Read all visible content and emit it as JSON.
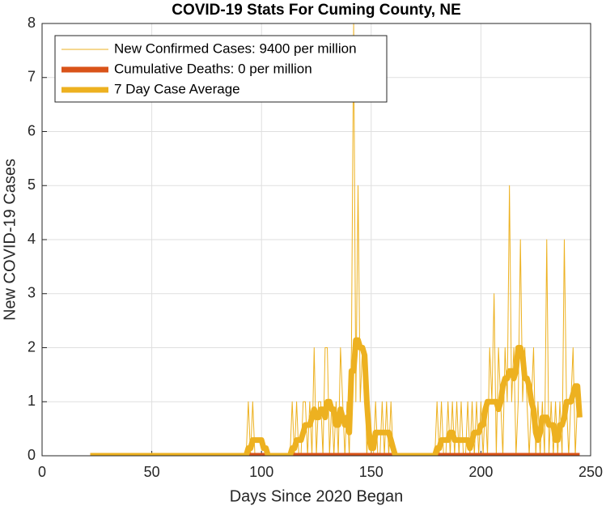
{
  "chart_data": {
    "type": "line",
    "title": "COVID-19 Stats For Cuming County, NE",
    "x_label": "Days Since 2020 Began",
    "y_label": "New COVID-19 Cases",
    "xlim": [
      0,
      250
    ],
    "xticks": [
      0,
      50,
      100,
      150,
      200,
      250
    ],
    "ylim": [
      0,
      8
    ],
    "yticks": [
      0,
      1,
      2,
      3,
      4,
      5,
      6,
      7,
      8
    ],
    "grid": true,
    "legend": "upper left",
    "series": [
      {
        "name": "New Confirmed Cases: 9400 per million",
        "color": "#edb120",
        "line_width": 1,
        "x": [
          22,
          23,
          24,
          25,
          26,
          27,
          28,
          29,
          30,
          31,
          32,
          33,
          34,
          35,
          36,
          37,
          38,
          39,
          40,
          41,
          42,
          43,
          44,
          45,
          46,
          47,
          48,
          49,
          50,
          51,
          52,
          53,
          54,
          55,
          56,
          57,
          58,
          59,
          60,
          61,
          62,
          63,
          64,
          65,
          66,
          67,
          68,
          69,
          70,
          71,
          72,
          73,
          74,
          75,
          76,
          77,
          78,
          79,
          80,
          81,
          82,
          83,
          84,
          85,
          86,
          87,
          88,
          89,
          90,
          91,
          92,
          93,
          94,
          95,
          96,
          97,
          98,
          99,
          100,
          101,
          102,
          103,
          104,
          105,
          106,
          107,
          108,
          109,
          110,
          111,
          112,
          113,
          114,
          115,
          116,
          117,
          118,
          119,
          120,
          121,
          122,
          123,
          124,
          125,
          126,
          127,
          128,
          129,
          130,
          131,
          132,
          133,
          134,
          135,
          136,
          137,
          138,
          139,
          140,
          141,
          142,
          143,
          144,
          145,
          146,
          147,
          148,
          149,
          150,
          151,
          152,
          153,
          154,
          155,
          156,
          157,
          158,
          159,
          160,
          161,
          162,
          163,
          164,
          165,
          166,
          167,
          168,
          169,
          170,
          171,
          172,
          173,
          174,
          175,
          176,
          177,
          178,
          179,
          180,
          181,
          182,
          183,
          184,
          185,
          186,
          187,
          188,
          189,
          190,
          191,
          192,
          193,
          194,
          195,
          196,
          197,
          198,
          199,
          200,
          201,
          202,
          203,
          204,
          205,
          206,
          207,
          208,
          209,
          210,
          211,
          212,
          213,
          214,
          215,
          216,
          217,
          218,
          219,
          220,
          221,
          222,
          223,
          224,
          225,
          226,
          227,
          228,
          229,
          230,
          231,
          232,
          233,
          234,
          235,
          236,
          237,
          238,
          239,
          240,
          241,
          242,
          243,
          244,
          245
        ],
        "values": [
          0,
          0,
          0,
          0,
          0,
          0,
          0,
          0,
          0,
          0,
          0,
          0,
          0,
          0,
          0,
          0,
          0,
          0,
          0,
          0,
          0,
          0,
          0,
          0,
          0,
          0,
          0,
          0,
          0,
          0,
          0,
          0,
          0,
          0,
          0,
          0,
          0,
          0,
          0,
          0,
          0,
          0,
          0,
          0,
          0,
          0,
          0,
          0,
          0,
          0,
          0,
          0,
          0,
          0,
          0,
          0,
          0,
          0,
          0,
          0,
          0,
          0,
          0,
          0,
          0,
          0,
          0,
          0,
          0,
          0,
          0,
          0,
          1,
          0,
          1,
          0,
          0,
          0,
          0,
          0,
          0,
          0,
          0,
          0,
          0,
          0,
          0,
          0,
          0,
          0,
          0,
          0,
          1,
          0,
          1,
          0,
          0,
          1,
          1,
          0,
          1,
          0,
          2,
          0,
          1,
          1,
          0,
          2,
          2,
          0,
          1,
          0,
          1,
          0,
          2,
          1,
          0,
          1,
          0,
          2,
          8,
          1,
          5,
          1,
          2,
          2,
          0,
          1,
          0,
          0,
          1,
          0,
          0,
          1,
          0,
          1,
          0,
          1,
          0,
          0,
          0,
          0,
          0,
          0,
          0,
          0,
          0,
          0,
          0,
          0,
          0,
          0,
          0,
          0,
          0,
          0,
          0,
          0,
          1,
          0,
          1,
          0,
          0,
          1,
          0,
          1,
          0,
          1,
          0,
          1,
          0,
          0,
          1,
          0,
          1,
          0,
          1,
          0,
          1,
          0,
          1,
          0,
          2,
          1,
          3,
          0,
          2,
          1,
          0,
          2,
          1,
          5,
          1,
          2,
          0,
          1,
          4,
          1,
          2,
          1,
          0,
          1,
          2,
          0,
          1,
          0,
          1,
          0,
          4,
          0,
          1,
          0,
          1,
          0,
          1,
          0,
          4,
          1,
          0,
          1,
          2,
          0,
          1,
          1
        ]
      },
      {
        "name": "Cumulative Deaths: 0 per million",
        "color": "#d95319",
        "line_width": 7,
        "x": [
          22,
          245
        ],
        "values": [
          0,
          0
        ]
      },
      {
        "name": "7 Day Case Average",
        "color": "#edb120",
        "line_width": 7,
        "x": [
          22,
          23,
          24,
          25,
          26,
          27,
          28,
          29,
          30,
          31,
          32,
          33,
          34,
          35,
          36,
          37,
          38,
          39,
          40,
          41,
          42,
          43,
          44,
          45,
          46,
          47,
          48,
          49,
          50,
          51,
          52,
          53,
          54,
          55,
          56,
          57,
          58,
          59,
          60,
          61,
          62,
          63,
          64,
          65,
          66,
          67,
          68,
          69,
          70,
          71,
          72,
          73,
          74,
          75,
          76,
          77,
          78,
          79,
          80,
          81,
          82,
          83,
          84,
          85,
          86,
          87,
          88,
          89,
          90,
          91,
          92,
          93,
          94,
          95,
          96,
          97,
          98,
          99,
          100,
          101,
          102,
          103,
          104,
          105,
          106,
          107,
          108,
          109,
          110,
          111,
          112,
          113,
          114,
          115,
          116,
          117,
          118,
          119,
          120,
          121,
          122,
          123,
          124,
          125,
          126,
          127,
          128,
          129,
          130,
          131,
          132,
          133,
          134,
          135,
          136,
          137,
          138,
          139,
          140,
          141,
          142,
          143,
          144,
          145,
          146,
          147,
          148,
          149,
          150,
          151,
          152,
          153,
          154,
          155,
          156,
          157,
          158,
          159,
          160,
          161,
          162,
          163,
          164,
          165,
          166,
          167,
          168,
          169,
          170,
          171,
          172,
          173,
          174,
          175,
          176,
          177,
          178,
          179,
          180,
          181,
          182,
          183,
          184,
          185,
          186,
          187,
          188,
          189,
          190,
          191,
          192,
          193,
          194,
          195,
          196,
          197,
          198,
          199,
          200,
          201,
          202,
          203,
          204,
          205,
          206,
          207,
          208,
          209,
          210,
          211,
          212,
          213,
          214,
          215,
          216,
          217,
          218,
          219,
          220,
          221,
          222,
          223,
          224,
          225,
          226,
          227,
          228,
          229,
          230,
          231,
          232,
          233,
          234,
          235,
          236,
          237,
          238,
          239,
          240,
          241,
          242,
          243,
          244,
          245
        ],
        "values": [
          0,
          0,
          0,
          0,
          0,
          0,
          0,
          0,
          0,
          0,
          0,
          0,
          0,
          0,
          0,
          0,
          0,
          0,
          0,
          0,
          0,
          0,
          0,
          0,
          0,
          0,
          0,
          0,
          0,
          0,
          0,
          0,
          0,
          0,
          0,
          0,
          0,
          0,
          0,
          0,
          0,
          0,
          0,
          0,
          0,
          0,
          0,
          0,
          0,
          0,
          0,
          0,
          0,
          0,
          0,
          0,
          0,
          0,
          0,
          0,
          0,
          0,
          0,
          0,
          0,
          0,
          0,
          0,
          0,
          0,
          0,
          0,
          0.14,
          0.14,
          0.29,
          0.29,
          0.29,
          0.29,
          0.29,
          0.14,
          0.14,
          0,
          0,
          0,
          0,
          0,
          0,
          0,
          0,
          0,
          0,
          0,
          0.14,
          0.14,
          0.29,
          0.29,
          0.29,
          0.43,
          0.57,
          0.57,
          0.57,
          0.71,
          0.86,
          0.71,
          0.71,
          0.86,
          0.86,
          0.71,
          1,
          1,
          0.86,
          0.86,
          0.57,
          0.57,
          0.86,
          0.71,
          0.57,
          0.71,
          0.43,
          1.57,
          1.57,
          2.14,
          2.14,
          2,
          2,
          1.86,
          1,
          0.43,
          0.14,
          0.14,
          0.43,
          0.43,
          0.43,
          0.43,
          0.43,
          0.43,
          0.43,
          0.29,
          0.14,
          0,
          0,
          0,
          0,
          0,
          0,
          0,
          0,
          0,
          0,
          0,
          0,
          0,
          0,
          0,
          0,
          0,
          0,
          0,
          0.14,
          0.14,
          0.29,
          0.29,
          0.29,
          0.29,
          0.43,
          0.43,
          0.29,
          0.29,
          0.29,
          0.29,
          0.29,
          0.29,
          0.29,
          0.14,
          0.29,
          0.43,
          0.43,
          0.43,
          0.57,
          0.57,
          0.86,
          1,
          1,
          1,
          1,
          1,
          0.86,
          1,
          1.29,
          1.43,
          1.43,
          1.57,
          1.57,
          1.43,
          1.57,
          2,
          2,
          1.86,
          1.43,
          1.43,
          1.29,
          1,
          0.86,
          0.43,
          0.29,
          0.43,
          0.71,
          0.71,
          0.71,
          0.57,
          0.57,
          0.57,
          0.29,
          0.29,
          0.57,
          0.57,
          0.71,
          1,
          1,
          1,
          1.14,
          1.29,
          1.29,
          0.71
        ]
      }
    ]
  }
}
